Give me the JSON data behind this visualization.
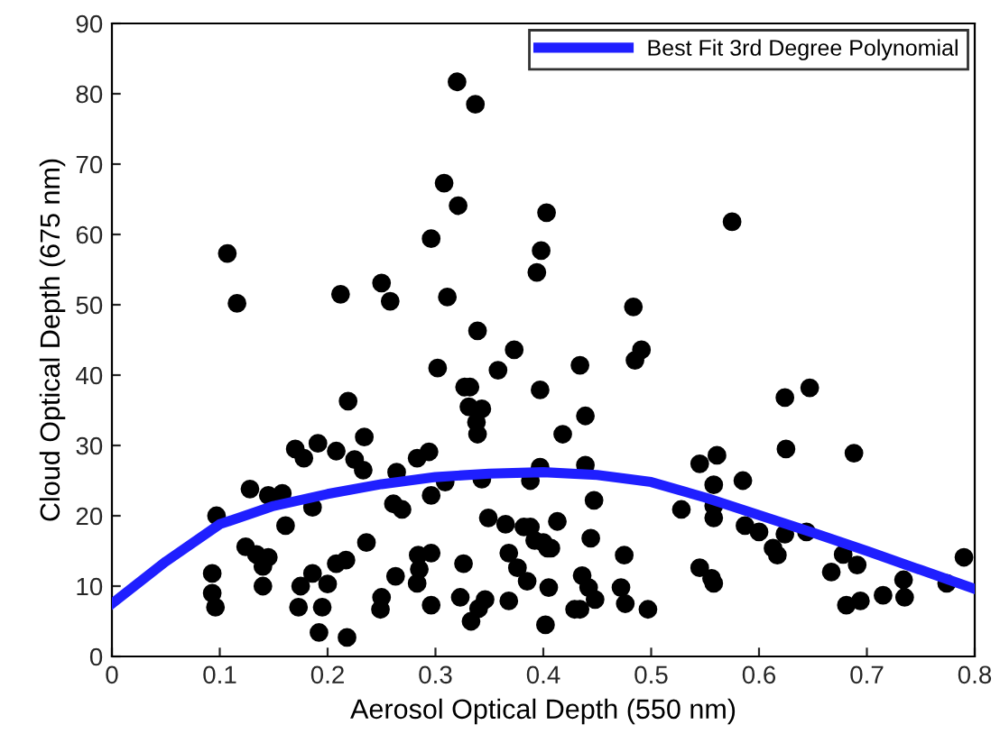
{
  "chart_data": {
    "type": "scatter",
    "xlabel": "Aerosol Optical Depth (550 nm)",
    "ylabel": "Cloud Optical Depth (675 nm)",
    "xlim": [
      0,
      0.8
    ],
    "ylim": [
      0,
      90
    ],
    "xticks": [
      0,
      0.1,
      0.2,
      0.3,
      0.4,
      0.5,
      0.6,
      0.7,
      0.8
    ],
    "yticks": [
      0,
      10,
      20,
      30,
      40,
      50,
      60,
      70,
      80,
      90
    ],
    "grid": false,
    "legend": "top right",
    "marker": "circle",
    "series": [
      {
        "color": "#000000",
        "x": [
          0.302,
          0.358,
          0.327,
          0.332,
          0.397,
          0.219,
          0.331,
          0.343,
          0.338,
          0.339,
          0.234,
          0.17,
          0.178,
          0.191,
          0.208,
          0.225,
          0.233,
          0.283,
          0.294,
          0.264,
          0.309,
          0.343,
          0.296,
          0.388,
          0.397,
          0.128,
          0.145,
          0.158,
          0.097,
          0.186,
          0.261,
          0.269,
          0.161,
          0.349,
          0.365,
          0.382,
          0.388,
          0.236,
          0.124,
          0.134,
          0.145,
          0.14,
          0.368,
          0.404,
          0.284,
          0.296,
          0.326,
          0.208,
          0.217,
          0.285,
          0.283,
          0.186,
          0.263,
          0.376,
          0.093,
          0.385,
          0.175,
          0.2,
          0.14,
          0.093,
          0.096,
          0.323,
          0.346,
          0.34,
          0.368,
          0.173,
          0.195,
          0.25,
          0.249,
          0.296,
          0.333,
          0.402,
          0.192,
          0.218,
          0.32,
          0.337,
          0.308,
          0.321,
          0.296,
          0.403,
          0.107,
          0.116,
          0.212,
          0.25,
          0.258,
          0.311,
          0.398,
          0.394,
          0.339,
          0.373,
          0.575,
          0.4835,
          0.491,
          0.485,
          0.434,
          0.624,
          0.647,
          0.439,
          0.418,
          0.625,
          0.688,
          0.561,
          0.545,
          0.439,
          0.585,
          0.558,
          0.447,
          0.528,
          0.558,
          0.558,
          0.413,
          0.587,
          0.6,
          0.624,
          0.644,
          0.444,
          0.392,
          0.4,
          0.407,
          0.613,
          0.617,
          0.678,
          0.691,
          0.667,
          0.475,
          0.545,
          0.556,
          0.558,
          0.79,
          0.774,
          0.734,
          0.735,
          0.715,
          0.694,
          0.681,
          0.436,
          0.442,
          0.448,
          0.405,
          0.472,
          0.476,
          0.497,
          0.429,
          0.434
        ],
        "values": [
          41.0,
          40.7,
          38.3,
          38.3,
          37.9,
          36.3,
          35.5,
          35.2,
          33.3,
          31.6,
          31.2,
          29.5,
          28.2,
          30.3,
          29.2,
          28.0,
          26.5,
          28.2,
          29.1,
          26.2,
          24.8,
          25.2,
          22.9,
          25.0,
          26.9,
          23.8,
          22.9,
          23.2,
          20.0,
          21.2,
          21.7,
          20.9,
          18.6,
          19.7,
          18.8,
          18.4,
          18.4,
          16.2,
          15.6,
          14.5,
          14.1,
          12.8,
          14.7,
          15.4,
          14.4,
          14.7,
          13.2,
          13.2,
          13.7,
          12.4,
          10.4,
          11.8,
          11.4,
          12.6,
          11.8,
          10.7,
          10.0,
          10.3,
          10.0,
          9.0,
          7.0,
          8.4,
          8.1,
          6.8,
          7.9,
          7.0,
          7.0,
          8.4,
          6.7,
          7.3,
          5.0,
          4.5,
          3.4,
          2.7,
          81.7,
          78.5,
          67.3,
          64.1,
          59.4,
          63.1,
          57.3,
          50.2,
          51.5,
          53.1,
          50.5,
          51.1,
          57.7,
          54.6,
          46.3,
          43.6,
          61.8,
          49.7,
          43.6,
          42.1,
          41.4,
          36.8,
          38.2,
          34.2,
          31.6,
          29.5,
          28.9,
          28.6,
          27.4,
          27.2,
          25.0,
          24.4,
          22.2,
          20.9,
          21.4,
          19.7,
          19.2,
          18.6,
          17.7,
          17.4,
          17.7,
          16.8,
          16.5,
          16.2,
          15.4,
          15.4,
          14.4,
          14.5,
          13.0,
          12.0,
          14.4,
          12.6,
          11.1,
          10.4,
          14.1,
          10.4,
          10.9,
          8.4,
          8.7,
          7.9,
          7.3,
          11.5,
          9.8,
          8.1,
          9.8,
          9.8,
          7.5,
          6.7,
          6.7,
          6.7
        ]
      },
      {
        "type": "line",
        "name": "Best Fit 3rd Degree Polynomial",
        "color": "#1f1fff",
        "marker": "none",
        "line_style": "solid",
        "x": [
          0,
          0.05,
          0.1,
          0.15,
          0.2,
          0.25,
          0.3,
          0.35,
          0.4,
          0.45,
          0.5,
          0.55,
          0.6,
          0.65,
          0.7,
          0.75,
          0.8
        ],
        "values": [
          7.5,
          13.5,
          18.8,
          21.4,
          23.1,
          24.5,
          25.5,
          26.0,
          26.2,
          25.8,
          24.8,
          22.6,
          20.1,
          17.6,
          15.0,
          12.3,
          9.6
        ]
      }
    ]
  }
}
